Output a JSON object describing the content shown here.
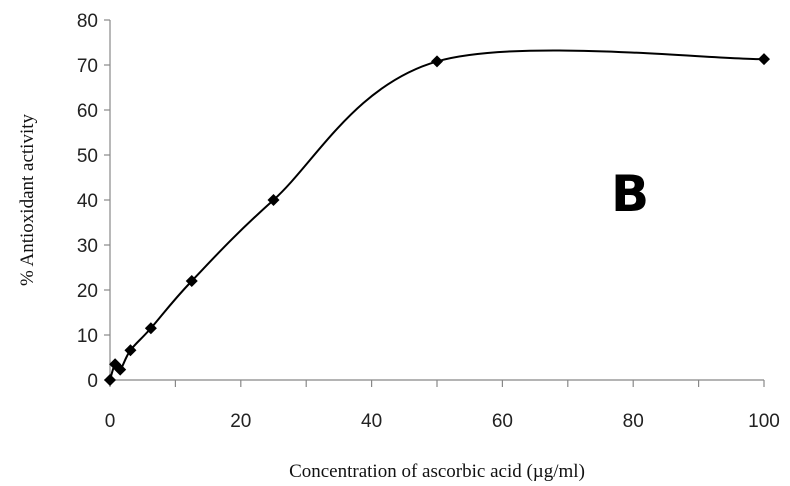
{
  "chart_data": {
    "type": "line",
    "xlabel": "Concentration of ascorbic acid (µg/ml)",
    "ylabel": "% Antioxidant activity",
    "panel_label": "B",
    "xlim": [
      0,
      100
    ],
    "ylim": [
      0,
      80
    ],
    "xticks": [
      0,
      20,
      40,
      60,
      80,
      100
    ],
    "yticks": [
      0,
      10,
      20,
      30,
      40,
      50,
      60,
      70,
      80
    ],
    "grid": false,
    "legend": "none",
    "smooth": true,
    "series": [
      {
        "x": [
          0,
          0.78,
          1.56,
          3.125,
          6.25,
          12.5,
          25,
          50,
          100
        ],
        "y": [
          0,
          3.5,
          2.3,
          6.6,
          11.5,
          22,
          40,
          70.8,
          71.3
        ]
      }
    ]
  }
}
